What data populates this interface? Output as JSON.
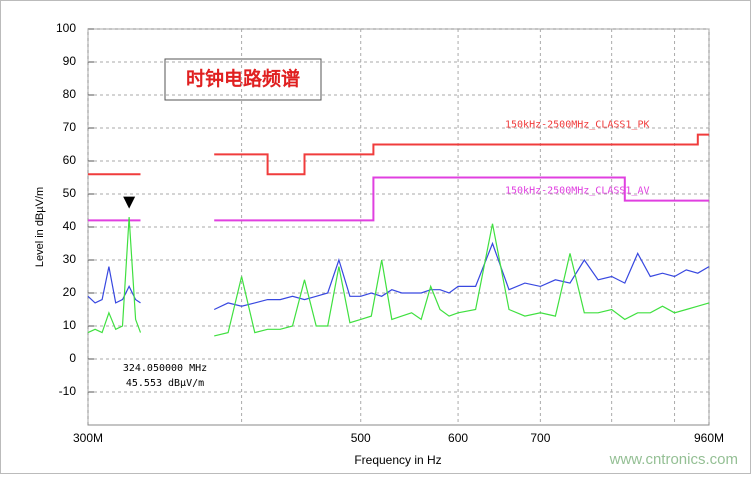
{
  "chart_data": {
    "type": "line",
    "title": "时钟电路频谱",
    "x_label": "Frequency in Hz",
    "y_label": "Level in dBµV/m",
    "xscale": "log",
    "xlim": [
      300,
      960
    ],
    "xticks": [
      {
        "value": 300,
        "label": "300M"
      },
      500,
      600,
      700,
      {
        "value": 960,
        "label": "960M"
      }
    ],
    "xminorticks": [
      400,
      800,
      900
    ],
    "ylim": [
      -20,
      100
    ],
    "yticks": [
      -10,
      0,
      10,
      20,
      30,
      40,
      50,
      60,
      70,
      80,
      90,
      100
    ],
    "grid": true,
    "series": [
      {
        "name": "150kHz-2500MHz_CLASS1_PK",
        "color": "#f03c3c",
        "x": [
          300,
          331,
          355,
          380,
          420,
          420,
          450,
          450,
          512,
          512,
          940,
          940,
          960
        ],
        "values": [
          56,
          56,
          null,
          62,
          62,
          56,
          56,
          62,
          62,
          65,
          65,
          68,
          68
        ]
      },
      {
        "name": "150kHz-2500MHz_CLASS1_AV",
        "color": "#e040e0",
        "x": [
          300,
          331,
          355,
          380,
          512,
          512,
          820,
          820,
          960
        ],
        "values": [
          42,
          42,
          null,
          42,
          42,
          55,
          55,
          48,
          48
        ]
      },
      {
        "color": "#3848e0",
        "x": [
          300,
          304,
          308,
          312,
          316,
          320,
          324,
          328,
          331,
          355,
          380,
          390,
          400,
          410,
          420,
          430,
          440,
          450,
          460,
          470,
          480,
          490,
          500,
          510,
          520,
          530,
          540,
          550,
          560,
          570,
          580,
          590,
          600,
          620,
          640,
          660,
          680,
          700,
          720,
          740,
          760,
          780,
          800,
          820,
          840,
          860,
          880,
          900,
          920,
          940,
          960
        ],
        "values": [
          19,
          17,
          18,
          28,
          17,
          18,
          22,
          18,
          17,
          null,
          15,
          17,
          16,
          17,
          18,
          18,
          19,
          18,
          19,
          20,
          30,
          19,
          19,
          20,
          19,
          21,
          20,
          20,
          20,
          21,
          21,
          20,
          22,
          22,
          35,
          21,
          23,
          22,
          24,
          23,
          30,
          24,
          25,
          23,
          32,
          25,
          26,
          25,
          27,
          26,
          28
        ]
      },
      {
        "color": "#40e040",
        "x": [
          300,
          304,
          308,
          312,
          316,
          320,
          324,
          328,
          331,
          355,
          380,
          390,
          400,
          410,
          420,
          430,
          440,
          450,
          460,
          470,
          480,
          490,
          500,
          510,
          520,
          530,
          540,
          550,
          560,
          570,
          580,
          590,
          600,
          620,
          640,
          660,
          680,
          700,
          720,
          740,
          760,
          780,
          800,
          820,
          840,
          860,
          880,
          900,
          920,
          940,
          960
        ],
        "values": [
          8,
          9,
          8,
          14,
          9,
          10,
          43,
          12,
          8,
          null,
          7,
          8,
          25,
          8,
          9,
          9,
          10,
          24,
          10,
          10,
          28,
          11,
          12,
          13,
          30,
          12,
          13,
          14,
          12,
          22,
          15,
          13,
          14,
          15,
          41,
          15,
          13,
          14,
          13,
          32,
          14,
          14,
          15,
          12,
          14,
          14,
          16,
          14,
          15,
          16,
          17
        ]
      }
    ],
    "marker": {
      "x": 324.05,
      "y": 45.553,
      "labels": [
        "324.050000 MHz",
        "45.553 dBµV/m"
      ]
    },
    "watermark": "www.cntronics.com"
  }
}
